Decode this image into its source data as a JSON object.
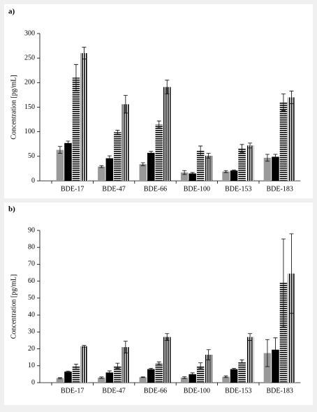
{
  "chart_data": [
    {
      "type": "bar",
      "panel_label": "a)",
      "y_label": "Concentration [pg/mL]",
      "categories": [
        "BDE-17",
        "BDE-47",
        "BDE-66",
        "BDE-100",
        "BDE-153",
        "BDE-183"
      ],
      "series": [
        {
          "color": "#999999",
          "hatch": "none",
          "values": [
            63,
            29,
            34,
            17,
            19,
            47
          ],
          "errors": [
            7,
            2,
            3,
            4,
            2,
            7
          ]
        },
        {
          "color": "#000000",
          "hatch": "none",
          "values": [
            77,
            46,
            57,
            15,
            21,
            49
          ],
          "errors": [
            4,
            5,
            3,
            2,
            1,
            5
          ]
        },
        {
          "color": "#000000",
          "hatch": "horizontal",
          "values": [
            210,
            99,
            115,
            61,
            66,
            160
          ],
          "errors": [
            27,
            4,
            7,
            10,
            8,
            17
          ]
        },
        {
          "color": "#000000",
          "hatch": "vertical",
          "values": [
            260,
            156,
            191,
            51,
            72,
            170
          ],
          "errors": [
            12,
            18,
            14,
            5,
            5,
            13
          ]
        }
      ],
      "ylim": [
        0,
        300
      ],
      "yticks": [
        0,
        50,
        100,
        150,
        200,
        250,
        300
      ]
    },
    {
      "type": "bar",
      "panel_label": "b)",
      "y_label": "Concentration [pg/mL]",
      "categories": [
        "BDE-17",
        "BDE-47",
        "BDE-66",
        "BDE-100",
        "BDE-153",
        "BDE-183"
      ],
      "series": [
        {
          "color": "#999999",
          "hatch": "none",
          "values": [
            2.7,
            3,
            3.2,
            3,
            3.5,
            17.5
          ],
          "errors": [
            0.3,
            0.4,
            0.2,
            0.5,
            0.5,
            8
          ]
        },
        {
          "color": "#000000",
          "hatch": "none",
          "values": [
            6.5,
            6,
            8,
            5,
            8,
            19.5
          ],
          "errors": [
            0.3,
            1,
            0.5,
            0.8,
            0.5,
            7
          ]
        },
        {
          "color": "#000000",
          "hatch": "horizontal",
          "values": [
            9.5,
            10,
            11.5,
            10,
            12.5,
            59
          ],
          "errors": [
            1.5,
            1.5,
            0.8,
            1.7,
            1,
            26
          ]
        },
        {
          "color": "#000000",
          "hatch": "vertical",
          "values": [
            21.5,
            21,
            27,
            16.5,
            27,
            64.5
          ],
          "errors": [
            0.5,
            3.5,
            2,
            3,
            2,
            23.5
          ]
        }
      ],
      "ylim": [
        0,
        90
      ],
      "yticks": [
        0,
        10,
        20,
        30,
        40,
        50,
        60,
        70,
        80,
        90
      ]
    }
  ]
}
